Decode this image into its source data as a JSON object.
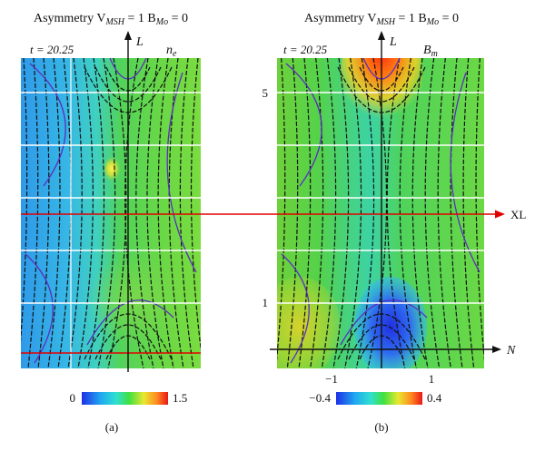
{
  "panels": [
    {
      "id": "a",
      "title": "Asymmetry V",
      "title_sub": "MSH",
      "title_mid": " = 1 B",
      "title_sub2": "Mo",
      "title_end": " = 0",
      "time": "t = 20.25",
      "axis_label": "L",
      "variable": "n",
      "variable_sub": "e",
      "colorbar_min": "0",
      "colorbar_max": "1.5",
      "caption": "(a)"
    },
    {
      "id": "b",
      "title": "Asymmetry V",
      "title_sub": "MSH",
      "title_mid": " = 1 B",
      "title_sub2": "Mo",
      "title_end": " = 0",
      "time": "t = 20.25",
      "axis_label": "L",
      "variable": "B",
      "variable_sub": "m",
      "colorbar_min": "−0.4",
      "colorbar_max": "0.4",
      "caption": "(b)",
      "y_ticks": [
        "5",
        "1"
      ],
      "x_ticks": [
        "−1",
        "1"
      ],
      "n_label": "N"
    }
  ],
  "xl_label": "XL",
  "colors": {
    "field_line": "#111111",
    "separatrix": "#5a2fc0",
    "xl_line": "#e00000",
    "grid": "#ffffff"
  }
}
